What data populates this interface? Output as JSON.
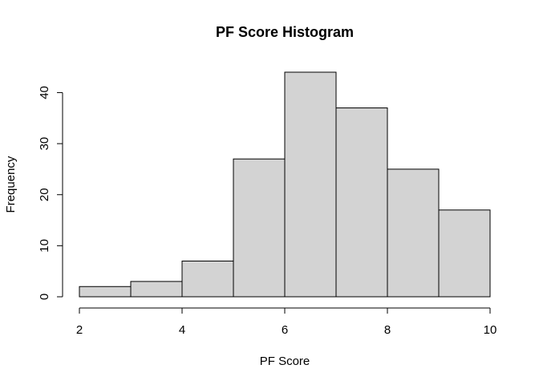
{
  "chart_data": {
    "type": "bar",
    "title": "PF Score Histogram",
    "xlabel": "PF Score",
    "ylabel": "Frequency",
    "bins": [
      [
        2,
        3
      ],
      [
        3,
        4
      ],
      [
        4,
        5
      ],
      [
        5,
        6
      ],
      [
        6,
        7
      ],
      [
        7,
        8
      ],
      [
        8,
        9
      ],
      [
        9,
        10
      ]
    ],
    "values": [
      2,
      3,
      7,
      27,
      44,
      37,
      25,
      17
    ],
    "xlim": [
      2,
      10
    ],
    "ylim": [
      0,
      44
    ],
    "xticks": [
      2,
      4,
      6,
      8,
      10
    ],
    "yticks": [
      0,
      10,
      20,
      30,
      40
    ],
    "bar_fill": "#d3d3d3",
    "grid": false
  }
}
